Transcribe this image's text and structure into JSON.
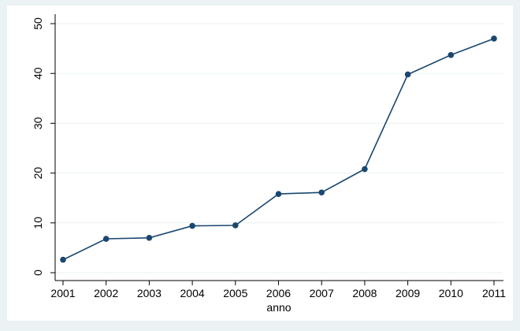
{
  "chart_data": {
    "type": "line",
    "title": "",
    "xlabel": "anno",
    "ylabel": "",
    "x": [
      2001,
      2002,
      2003,
      2004,
      2005,
      2006,
      2007,
      2008,
      2009,
      2010,
      2011
    ],
    "series": [
      {
        "values": [
          2.6,
          6.8,
          7.0,
          9.4,
          9.5,
          15.8,
          16.1,
          20.8,
          39.8,
          43.7,
          47.0
        ]
      }
    ],
    "xlim": [
      2001,
      2011
    ],
    "ylim": [
      0,
      50
    ],
    "yticks": [
      0,
      10,
      20,
      30,
      40,
      50
    ],
    "xticks": [
      2001,
      2002,
      2003,
      2004,
      2005,
      2006,
      2007,
      2008,
      2009,
      2010,
      2011
    ],
    "grid": "horizontal",
    "legend": "none",
    "colors": {
      "background": "#eaf2f3",
      "plot_background": "#ffffff",
      "line": "#1a476f",
      "grid": "#eaf2f3"
    }
  }
}
